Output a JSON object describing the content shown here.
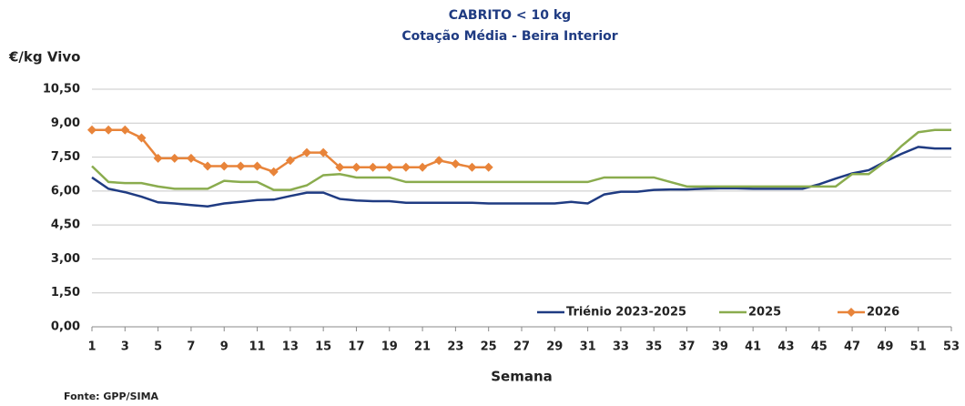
{
  "chart_data": {
    "type": "line",
    "title": "CABRITO < 10 kg",
    "subtitle": "Cotação Média - Beira Interior",
    "y_label": "€/kg Vivo",
    "x_label": "Semana",
    "source": "Fonte: GPP/SIMA",
    "x": [
      1,
      2,
      3,
      4,
      5,
      6,
      7,
      8,
      9,
      10,
      11,
      12,
      13,
      14,
      15,
      16,
      17,
      18,
      19,
      20,
      21,
      22,
      23,
      24,
      25,
      26,
      27,
      28,
      29,
      30,
      31,
      32,
      33,
      34,
      35,
      36,
      37,
      38,
      39,
      40,
      41,
      42,
      43,
      44,
      45,
      46,
      47,
      48,
      49,
      50,
      51,
      52,
      53
    ],
    "xlim": [
      1,
      53
    ],
    "xticks": [
      1,
      3,
      5,
      7,
      9,
      11,
      13,
      15,
      17,
      19,
      21,
      23,
      25,
      27,
      29,
      31,
      33,
      35,
      37,
      39,
      41,
      43,
      45,
      47,
      49,
      51,
      53
    ],
    "ylim": [
      0,
      10.5
    ],
    "yticks": [
      {
        "value": 0,
        "label": "0,00"
      },
      {
        "value": 1.5,
        "label": "1,50"
      },
      {
        "value": 3,
        "label": "3,00"
      },
      {
        "value": 4.5,
        "label": "4,50"
      },
      {
        "value": 6,
        "label": "6,00"
      },
      {
        "value": 7.5,
        "label": "7,50"
      },
      {
        "value": 9,
        "label": "9,00"
      },
      {
        "value": 10.5,
        "label": "10,50"
      }
    ],
    "grid": true,
    "legend": "bottom-right",
    "series": [
      {
        "name": "Triénio 2023-2025",
        "color": "#1f3b82",
        "markers": false,
        "values": [
          6.6,
          6.1,
          5.95,
          5.75,
          5.5,
          5.45,
          5.38,
          5.32,
          5.45,
          5.52,
          5.6,
          5.62,
          5.78,
          5.93,
          5.93,
          5.65,
          5.58,
          5.55,
          5.55,
          5.48,
          5.48,
          5.48,
          5.48,
          5.48,
          5.45,
          5.45,
          5.45,
          5.45,
          5.45,
          5.52,
          5.45,
          5.85,
          5.97,
          5.97,
          6.05,
          6.07,
          6.07,
          6.1,
          6.12,
          6.12,
          6.1,
          6.1,
          6.1,
          6.1,
          6.3,
          6.55,
          6.78,
          6.92,
          7.3,
          7.65,
          7.95,
          7.88,
          7.88
        ]
      },
      {
        "name": "2025",
        "color": "#8aac4e",
        "markers": false,
        "values": [
          7.1,
          6.4,
          6.35,
          6.35,
          6.2,
          6.1,
          6.1,
          6.1,
          6.45,
          6.4,
          6.4,
          6.05,
          6.05,
          6.25,
          6.7,
          6.75,
          6.6,
          6.6,
          6.6,
          6.4,
          6.4,
          6.4,
          6.4,
          6.4,
          6.4,
          6.4,
          6.4,
          6.4,
          6.4,
          6.4,
          6.4,
          6.6,
          6.6,
          6.6,
          6.6,
          6.4,
          6.2,
          6.2,
          6.2,
          6.2,
          6.2,
          6.2,
          6.2,
          6.2,
          6.2,
          6.2,
          6.75,
          6.75,
          7.3,
          8.0,
          8.6,
          8.7,
          8.7
        ]
      },
      {
        "name": "2026",
        "color": "#e8843a",
        "markers": true,
        "values": [
          8.7,
          8.7,
          8.7,
          8.35,
          7.45,
          7.45,
          7.45,
          7.1,
          7.1,
          7.1,
          7.1,
          6.85,
          7.35,
          7.7,
          7.7,
          7.05,
          7.05,
          7.05,
          7.05,
          7.05,
          7.05,
          7.35,
          7.2,
          7.05,
          7.05,
          null,
          null,
          null,
          null,
          null,
          null,
          null,
          null,
          null,
          null,
          null,
          null,
          null,
          null,
          null,
          null,
          null,
          null,
          null,
          null,
          null,
          null,
          null,
          null,
          null,
          null,
          null,
          null
        ]
      }
    ]
  }
}
